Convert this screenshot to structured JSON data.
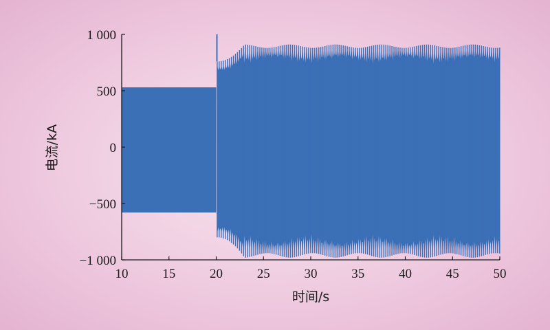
{
  "chart_data": {
    "type": "line",
    "title": "",
    "xlabel": "时间/s",
    "ylabel": "电流/kA",
    "xlim": [
      10,
      50
    ],
    "ylim": [
      -1000,
      1000
    ],
    "x_ticks": [
      10,
      15,
      20,
      25,
      30,
      35,
      40,
      45,
      50
    ],
    "x_tick_labels": [
      "10",
      "15",
      "20",
      "25",
      "30",
      "35",
      "40",
      "45",
      "50"
    ],
    "y_ticks": [
      -1000,
      -500,
      0,
      500,
      1000
    ],
    "y_tick_labels": [
      "−1 000",
      "−500",
      "0",
      "500",
      "1 000"
    ],
    "grid": false,
    "legend": "none",
    "series_color": "#3b6fb6",
    "series": [
      {
        "segments": [
          {
            "t_start": 10,
            "t_end": 20,
            "amplitude_max": 530,
            "amplitude_min": -580
          },
          {
            "t_start": 20,
            "t_end": 20.1,
            "peak": 1000
          },
          {
            "t_start": 20.1,
            "t_end": 23,
            "amplitude_max": 760,
            "amplitude_min": -800,
            "note_shape": "ramp"
          },
          {
            "t_start": 23,
            "t_end": 50,
            "amplitude_max": 910,
            "amplitude_min": -980
          }
        ]
      }
    ]
  }
}
